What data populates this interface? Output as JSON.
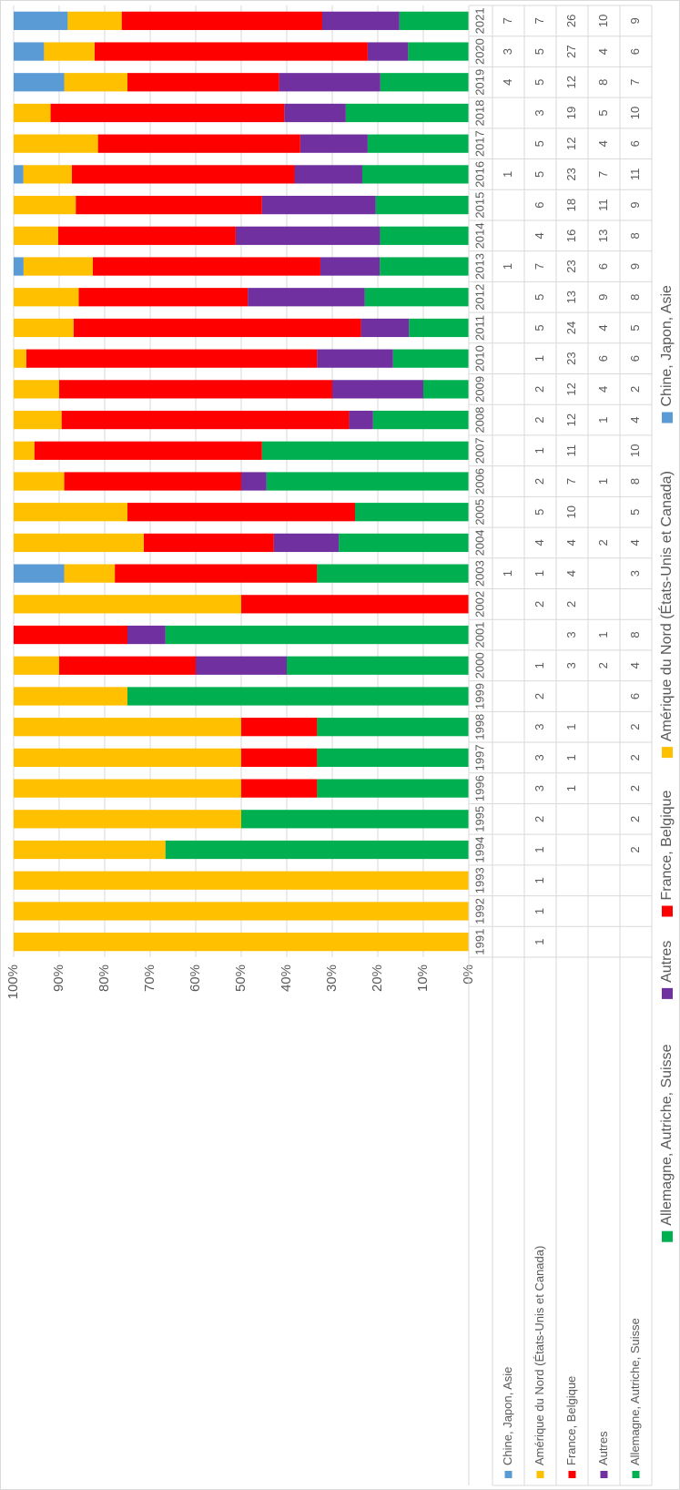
{
  "chart_data": {
    "type": "stacked_percent_bar",
    "categories": [
      "1991",
      "1992",
      "1993",
      "1994",
      "1995",
      "1996",
      "1997",
      "1998",
      "1999",
      "2000",
      "2001",
      "2002",
      "2003",
      "2004",
      "2005",
      "2006",
      "2007",
      "2008",
      "2009",
      "2010",
      "2011",
      "2012",
      "2013",
      "2014",
      "2015",
      "2016",
      "2017",
      "2018",
      "2019",
      "2020",
      "2021"
    ],
    "series": [
      {
        "name": "Chine, Japon, Asie",
        "color": "#5b9bd5",
        "values": [
          null,
          null,
          null,
          null,
          null,
          null,
          null,
          null,
          null,
          null,
          null,
          null,
          1,
          null,
          null,
          null,
          null,
          null,
          null,
          null,
          null,
          null,
          1,
          null,
          null,
          1,
          null,
          null,
          4,
          3,
          7
        ]
      },
      {
        "name": "Amérique du Nord (États-Unis et Canada)",
        "color": "#ffc000",
        "values": [
          1,
          1,
          1,
          1,
          2,
          3,
          3,
          3,
          2,
          1,
          null,
          2,
          1,
          4,
          5,
          2,
          1,
          2,
          2,
          1,
          5,
          5,
          7,
          4,
          6,
          5,
          5,
          3,
          5,
          5,
          7
        ]
      },
      {
        "name": "France, Belgique",
        "color": "#ff0000",
        "values": [
          null,
          null,
          null,
          null,
          null,
          1,
          1,
          1,
          null,
          3,
          3,
          2,
          4,
          4,
          10,
          7,
          11,
          12,
          12,
          23,
          24,
          13,
          23,
          16,
          18,
          23,
          12,
          19,
          12,
          27,
          26
        ]
      },
      {
        "name": "Autres",
        "color": "#7030a0",
        "values": [
          null,
          null,
          null,
          null,
          null,
          null,
          null,
          null,
          null,
          2,
          1,
          null,
          null,
          2,
          null,
          1,
          null,
          1,
          4,
          6,
          4,
          9,
          6,
          13,
          11,
          7,
          4,
          5,
          8,
          4,
          10
        ]
      },
      {
        "name": "Allemagne, Autriche, Suisse",
        "color": "#00b050",
        "values": [
          null,
          null,
          null,
          2,
          2,
          2,
          2,
          2,
          6,
          4,
          8,
          null,
          3,
          4,
          5,
          8,
          10,
          4,
          2,
          6,
          5,
          8,
          9,
          8,
          9,
          11,
          6,
          10,
          7,
          6,
          9
        ]
      }
    ],
    "ylim": [
      0,
      100
    ],
    "yticks": [
      {
        "value": 0,
        "label": "0%"
      },
      {
        "value": 10,
        "label": "10%"
      },
      {
        "value": 20,
        "label": "20%"
      },
      {
        "value": 30,
        "label": "30%"
      },
      {
        "value": 40,
        "label": "40%"
      },
      {
        "value": 50,
        "label": "50%"
      },
      {
        "value": 60,
        "label": "60%"
      },
      {
        "value": 70,
        "label": "70%"
      },
      {
        "value": 80,
        "label": "80%"
      },
      {
        "value": 90,
        "label": "90%"
      },
      {
        "value": 100,
        "label": "100%"
      }
    ],
    "grid": true,
    "legend": "bottom"
  }
}
